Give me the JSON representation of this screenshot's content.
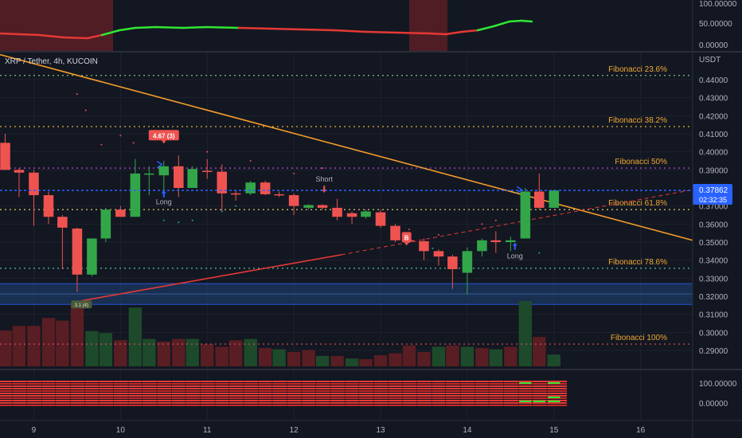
{
  "symbol_title": "XRP / Tether, 4h, KUCOIN",
  "currency": "USDT",
  "colors": {
    "background": "#131722",
    "up": "#26a69a",
    "up_candle": "#33a64a",
    "down": "#ef5350",
    "grid": "#1e222d",
    "axis_text": "#b2b5be",
    "fib": "#f0a830",
    "price_line": "#2962ff"
  },
  "top_panel": {
    "ticks": [
      "100.00000",
      "50.00000",
      "0.00000"
    ],
    "line": [
      {
        "x": 0,
        "y": 42
      },
      {
        "x": 50,
        "y": 44
      },
      {
        "x": 80,
        "y": 47
      },
      {
        "x": 110,
        "y": 48
      },
      {
        "x": 128,
        "y": 44
      },
      {
        "x": 150,
        "y": 38
      },
      {
        "x": 170,
        "y": 35
      },
      {
        "x": 195,
        "y": 34
      },
      {
        "x": 230,
        "y": 35
      },
      {
        "x": 260,
        "y": 34
      },
      {
        "x": 300,
        "y": 35
      },
      {
        "x": 340,
        "y": 36
      },
      {
        "x": 380,
        "y": 37
      },
      {
        "x": 420,
        "y": 38
      },
      {
        "x": 460,
        "y": 40
      },
      {
        "x": 500,
        "y": 41
      },
      {
        "x": 540,
        "y": 42
      },
      {
        "x": 560,
        "y": 43
      },
      {
        "x": 580,
        "y": 40
      },
      {
        "x": 600,
        "y": 38
      },
      {
        "x": 620,
        "y": 33
      },
      {
        "x": 640,
        "y": 27
      },
      {
        "x": 655,
        "y": 26
      },
      {
        "x": 668,
        "y": 27
      }
    ],
    "green_segments": [
      [
        4,
        10
      ],
      [
        19,
        23
      ]
    ],
    "red_zones": [
      [
        0,
        142
      ],
      [
        514,
        562
      ]
    ]
  },
  "main_panel": {
    "y_ticks": [
      "0.44000",
      "0.43000",
      "0.42000",
      "0.41000",
      "0.40000",
      "0.39000",
      "0.37000",
      "0.36000",
      "0.35000",
      "0.34000",
      "0.33000",
      "0.32000",
      "0.31000",
      "0.30000",
      "0.29000"
    ],
    "y_tick_values": [
      0.44,
      0.43,
      0.42,
      0.41,
      0.4,
      0.39,
      0.37,
      0.36,
      0.35,
      0.34,
      0.33,
      0.32,
      0.31,
      0.3,
      0.29
    ],
    "current_price": "0.37862",
    "countdown": "02:32:35",
    "fib_levels": [
      {
        "label": "Fibonacci 23.6%",
        "value": 0.4423,
        "color": "#7dc476"
      },
      {
        "label": "Fibonacci 38.2%",
        "value": 0.414,
        "color": "#f0c030"
      },
      {
        "label": "Fibonacci 50%",
        "value": 0.391,
        "color": "#c050e0"
      },
      {
        "label": "Fibonacci 61.8%",
        "value": 0.368,
        "color": "#f0e060"
      },
      {
        "label": "Fibonacci 78.6%",
        "value": 0.3355,
        "color": "#4cc0a0"
      },
      {
        "label": "Fibonacci 100%",
        "value": 0.2935,
        "color": "#e05050"
      }
    ],
    "annotations": [
      {
        "text": "4.67 (3)",
        "type": "badge",
        "time": 10.5,
        "price": 0.409
      },
      {
        "text": "Long",
        "type": "label",
        "time": 10.5,
        "price": 0.371
      },
      {
        "text": "Short",
        "type": "label",
        "time": 12.35,
        "price": 0.3835
      },
      {
        "text": "B",
        "type": "badge",
        "time": 13.3,
        "price": 0.3525
      },
      {
        "text": "Long",
        "type": "label",
        "time": 14.55,
        "price": 0.341
      },
      {
        "text": "3.1 (4)",
        "type": "small-badge",
        "time": 9.55,
        "price": 0.3155
      }
    ]
  },
  "x_axis": {
    "labels": [
      "9",
      "10",
      "11",
      "12",
      "13",
      "14",
      "15",
      "16"
    ],
    "values": [
      9,
      10,
      11,
      12,
      13,
      14,
      15,
      16
    ]
  },
  "chart_data": {
    "type": "candlestick",
    "title": "XRP / Tether, 4h, KUCOIN",
    "y_unit": "USDT",
    "ylim": [
      0.283,
      0.4505
    ],
    "xlim": [
      8.61,
      16.6
    ],
    "x_unit": "day of month",
    "candles": [
      {
        "t": 8.67,
        "o": 0.405,
        "h": 0.41,
        "l": 0.39,
        "c": 0.39
      },
      {
        "t": 8.83,
        "o": 0.39,
        "h": 0.391,
        "l": 0.375,
        "c": 0.3885
      },
      {
        "t": 9.0,
        "o": 0.3885,
        "h": 0.39,
        "l": 0.359,
        "c": 0.376
      },
      {
        "t": 9.17,
        "o": 0.376,
        "h": 0.378,
        "l": 0.36,
        "c": 0.364
      },
      {
        "t": 9.33,
        "o": 0.364,
        "h": 0.365,
        "l": 0.335,
        "c": 0.358
      },
      {
        "t": 9.5,
        "o": 0.3575,
        "h": 0.358,
        "l": 0.3225,
        "c": 0.332
      },
      {
        "t": 9.67,
        "o": 0.332,
        "h": 0.352,
        "l": 0.331,
        "c": 0.352
      },
      {
        "t": 9.83,
        "o": 0.352,
        "h": 0.369,
        "l": 0.35,
        "c": 0.368
      },
      {
        "t": 10.0,
        "o": 0.368,
        "h": 0.37,
        "l": 0.364,
        "c": 0.364
      },
      {
        "t": 10.17,
        "o": 0.364,
        "h": 0.396,
        "l": 0.364,
        "c": 0.388
      },
      {
        "t": 10.33,
        "o": 0.388,
        "h": 0.392,
        "l": 0.376,
        "c": 0.388
      },
      {
        "t": 10.5,
        "o": 0.387,
        "h": 0.395,
        "l": 0.378,
        "c": 0.392
      },
      {
        "t": 10.67,
        "o": 0.392,
        "h": 0.398,
        "l": 0.375,
        "c": 0.38
      },
      {
        "t": 10.83,
        "o": 0.38,
        "h": 0.392,
        "l": 0.38,
        "c": 0.3905
      },
      {
        "t": 11.0,
        "o": 0.3895,
        "h": 0.396,
        "l": 0.385,
        "c": 0.389
      },
      {
        "t": 11.17,
        "o": 0.389,
        "h": 0.393,
        "l": 0.367,
        "c": 0.377
      },
      {
        "t": 11.33,
        "o": 0.377,
        "h": 0.379,
        "l": 0.373,
        "c": 0.3765
      },
      {
        "t": 11.5,
        "o": 0.377,
        "h": 0.384,
        "l": 0.376,
        "c": 0.383
      },
      {
        "t": 11.67,
        "o": 0.383,
        "h": 0.384,
        "l": 0.376,
        "c": 0.3765
      },
      {
        "t": 11.83,
        "o": 0.3765,
        "h": 0.378,
        "l": 0.375,
        "c": 0.376
      },
      {
        "t": 12.0,
        "o": 0.376,
        "h": 0.377,
        "l": 0.365,
        "c": 0.37
      },
      {
        "t": 12.17,
        "o": 0.369,
        "h": 0.371,
        "l": 0.368,
        "c": 0.3705
      },
      {
        "t": 12.33,
        "o": 0.3705,
        "h": 0.371,
        "l": 0.368,
        "c": 0.369
      },
      {
        "t": 12.5,
        "o": 0.369,
        "h": 0.374,
        "l": 0.362,
        "c": 0.364
      },
      {
        "t": 12.67,
        "o": 0.366,
        "h": 0.367,
        "l": 0.36,
        "c": 0.364
      },
      {
        "t": 12.83,
        "o": 0.364,
        "h": 0.368,
        "l": 0.363,
        "c": 0.367
      },
      {
        "t": 13.0,
        "o": 0.3665,
        "h": 0.368,
        "l": 0.358,
        "c": 0.359
      },
      {
        "t": 13.17,
        "o": 0.359,
        "h": 0.36,
        "l": 0.35,
        "c": 0.351
      },
      {
        "t": 13.33,
        "o": 0.351,
        "h": 0.353,
        "l": 0.3495,
        "c": 0.3505
      },
      {
        "t": 13.5,
        "o": 0.3505,
        "h": 0.352,
        "l": 0.34,
        "c": 0.345
      },
      {
        "t": 13.67,
        "o": 0.345,
        "h": 0.346,
        "l": 0.337,
        "c": 0.342
      },
      {
        "t": 13.83,
        "o": 0.342,
        "h": 0.343,
        "l": 0.324,
        "c": 0.335
      },
      {
        "t": 14.0,
        "o": 0.333,
        "h": 0.347,
        "l": 0.321,
        "c": 0.345
      },
      {
        "t": 14.17,
        "o": 0.345,
        "h": 0.352,
        "l": 0.342,
        "c": 0.351
      },
      {
        "t": 14.33,
        "o": 0.351,
        "h": 0.356,
        "l": 0.344,
        "c": 0.35
      },
      {
        "t": 14.5,
        "o": 0.35,
        "h": 0.353,
        "l": 0.345,
        "c": 0.351
      },
      {
        "t": 14.67,
        "o": 0.352,
        "h": 0.38,
        "l": 0.352,
        "c": 0.378
      },
      {
        "t": 14.83,
        "o": 0.378,
        "h": 0.388,
        "l": 0.368,
        "c": 0.369
      },
      {
        "t": 15.0,
        "o": 0.369,
        "h": 0.379,
        "l": 0.369,
        "c": 0.3786
      }
    ],
    "trendlines": [
      {
        "name": "descending",
        "from": {
          "t": 8.6,
          "p": 0.454
        },
        "to": {
          "t": 16.6,
          "p": 0.351
        },
        "color": "#f59d2a"
      },
      {
        "name": "ascending",
        "from": {
          "t": 9.55,
          "p": 0.3175
        },
        "to": {
          "t": 12.55,
          "p": 0.343
        },
        "color": "#e53935"
      },
      {
        "name": "ascending-ext",
        "from": {
          "t": 12.55,
          "p": 0.343
        },
        "to": {
          "t": 16.6,
          "p": 0.379
        },
        "color": "#e53935",
        "dashed": true
      }
    ],
    "support_zone": [
      0.3155,
      0.327
    ],
    "volume": [
      0.55,
      0.62,
      0.62,
      0.74,
      0.7,
      0.95,
      0.54,
      0.51,
      0.4,
      0.9,
      0.42,
      0.38,
      0.42,
      0.42,
      0.34,
      0.3,
      0.4,
      0.42,
      0.28,
      0.26,
      0.22,
      0.25,
      0.16,
      0.16,
      0.12,
      0.11,
      0.17,
      0.2,
      0.32,
      0.22,
      0.3,
      0.32,
      0.3,
      0.28,
      0.26,
      0.3,
      1.0,
      0.45,
      0.18
    ],
    "volume_up": [
      false,
      false,
      false,
      false,
      false,
      false,
      true,
      true,
      false,
      true,
      true,
      false,
      false,
      true,
      false,
      false,
      false,
      true,
      false,
      true,
      false,
      false,
      true,
      false,
      true,
      false,
      false,
      false,
      false,
      false,
      true,
      false,
      true,
      false,
      true,
      false,
      true,
      false,
      true
    ]
  }
}
